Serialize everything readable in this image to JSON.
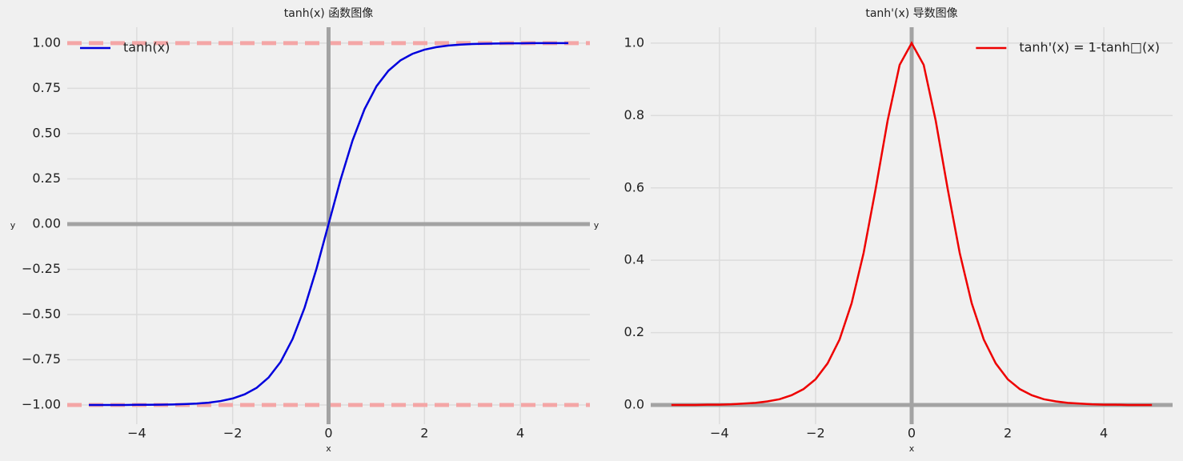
{
  "chart_data": [
    {
      "type": "line",
      "title": "tanh(x) 函数图像",
      "xlabel": "x",
      "ylabel": "y",
      "x": [
        -5,
        -4.75,
        -4.5,
        -4.25,
        -4,
        -3.75,
        -3.5,
        -3.25,
        -3,
        -2.75,
        -2.5,
        -2.25,
        -2,
        -1.75,
        -1.5,
        -1.25,
        -1,
        -0.75,
        -0.5,
        -0.25,
        0,
        0.25,
        0.5,
        0.75,
        1,
        1.25,
        1.5,
        1.75,
        2,
        2.25,
        2.5,
        2.75,
        3,
        3.25,
        3.5,
        3.75,
        4,
        4.25,
        4.5,
        4.75,
        5
      ],
      "series": [
        {
          "name": "tanh(x)",
          "color": "#0000dd",
          "values": [
            -1.0,
            -1.0,
            -1.0,
            -1.0,
            -0.999,
            -0.999,
            -0.998,
            -0.997,
            -0.995,
            -0.992,
            -0.987,
            -0.978,
            -0.964,
            -0.941,
            -0.905,
            -0.848,
            -0.762,
            -0.635,
            -0.462,
            -0.245,
            0,
            0.245,
            0.462,
            0.635,
            0.762,
            0.848,
            0.905,
            0.941,
            0.964,
            0.978,
            0.987,
            0.992,
            0.995,
            0.997,
            0.998,
            0.999,
            0.999,
            1.0,
            1.0,
            1.0,
            1.0
          ]
        }
      ],
      "reference_lines": [
        {
          "orientation": "h",
          "value": 1,
          "color": "#f4a6a6",
          "style": "dashed"
        },
        {
          "orientation": "h",
          "value": -1,
          "color": "#f4a6a6",
          "style": "dashed"
        },
        {
          "orientation": "h",
          "value": 0,
          "color": "#a3a3a3",
          "style": "solid"
        },
        {
          "orientation": "v",
          "value": 0,
          "color": "#a3a3a3",
          "style": "solid"
        }
      ],
      "xlim": [
        -5.45,
        5.45
      ],
      "ylim": [
        -1.106,
        1.088
      ],
      "xticks": [
        {
          "value": -4,
          "label": "−4"
        },
        {
          "value": -2,
          "label": "−2"
        },
        0,
        2,
        4
      ],
      "yticks": [
        {
          "value": -1,
          "label": "−1.00"
        },
        {
          "value": -0.75,
          "label": "−0.75"
        },
        {
          "value": -0.5,
          "label": "−0.50"
        },
        {
          "value": -0.25,
          "label": "−0.25"
        },
        {
          "value": 0,
          "label": "0.00"
        },
        {
          "value": 0.25,
          "label": "0.25"
        },
        {
          "value": 0.5,
          "label": "0.50"
        },
        {
          "value": 0.75,
          "label": "0.75"
        },
        {
          "value": 1,
          "label": "1.00"
        }
      ],
      "grid": true,
      "legend": "upper left"
    },
    {
      "type": "line",
      "title": "tanh'(x) 导数图像",
      "xlabel": "x",
      "ylabel": "y",
      "x": [
        -5,
        -4.75,
        -4.5,
        -4.25,
        -4,
        -3.75,
        -3.5,
        -3.25,
        -3,
        -2.75,
        -2.5,
        -2.25,
        -2,
        -1.75,
        -1.5,
        -1.25,
        -1,
        -0.75,
        -0.5,
        -0.25,
        0,
        0.25,
        0.5,
        0.75,
        1,
        1.25,
        1.5,
        1.75,
        2,
        2.25,
        2.5,
        2.75,
        3,
        3.25,
        3.5,
        3.75,
        4,
        4.25,
        4.5,
        4.75,
        5
      ],
      "series": [
        {
          "name": "tanh'(x) = 1-tanh□(x)",
          "color": "#ee0000",
          "values": [
            0.0,
            0.0,
            0.0,
            0.001,
            0.001,
            0.002,
            0.004,
            0.006,
            0.01,
            0.016,
            0.027,
            0.044,
            0.071,
            0.115,
            0.181,
            0.281,
            0.42,
            0.597,
            0.786,
            0.94,
            1,
            0.94,
            0.786,
            0.597,
            0.42,
            0.281,
            0.181,
            0.115,
            0.071,
            0.044,
            0.027,
            0.016,
            0.01,
            0.006,
            0.004,
            0.002,
            0.001,
            0.001,
            0.0,
            0.0,
            0.0
          ]
        }
      ],
      "reference_lines": [
        {
          "orientation": "h",
          "value": 0,
          "color": "#a3a3a3",
          "style": "solid"
        },
        {
          "orientation": "v",
          "value": 0,
          "color": "#a3a3a3",
          "style": "solid"
        }
      ],
      "xlim": [
        -5.43,
        5.43
      ],
      "ylim": [
        -0.053,
        1.044
      ],
      "xticks": [
        {
          "value": -4,
          "label": "−4"
        },
        {
          "value": -2,
          "label": "−2"
        },
        0,
        2,
        4
      ],
      "yticks": [
        {
          "value": 0,
          "label": "0.0"
        },
        {
          "value": 0.2,
          "label": "0.2"
        },
        {
          "value": 0.4,
          "label": "0.4"
        },
        {
          "value": 0.6,
          "label": "0.6"
        },
        {
          "value": 0.8,
          "label": "0.8"
        },
        {
          "value": 1,
          "label": "1.0"
        }
      ],
      "grid": true,
      "legend": "upper right"
    }
  ]
}
